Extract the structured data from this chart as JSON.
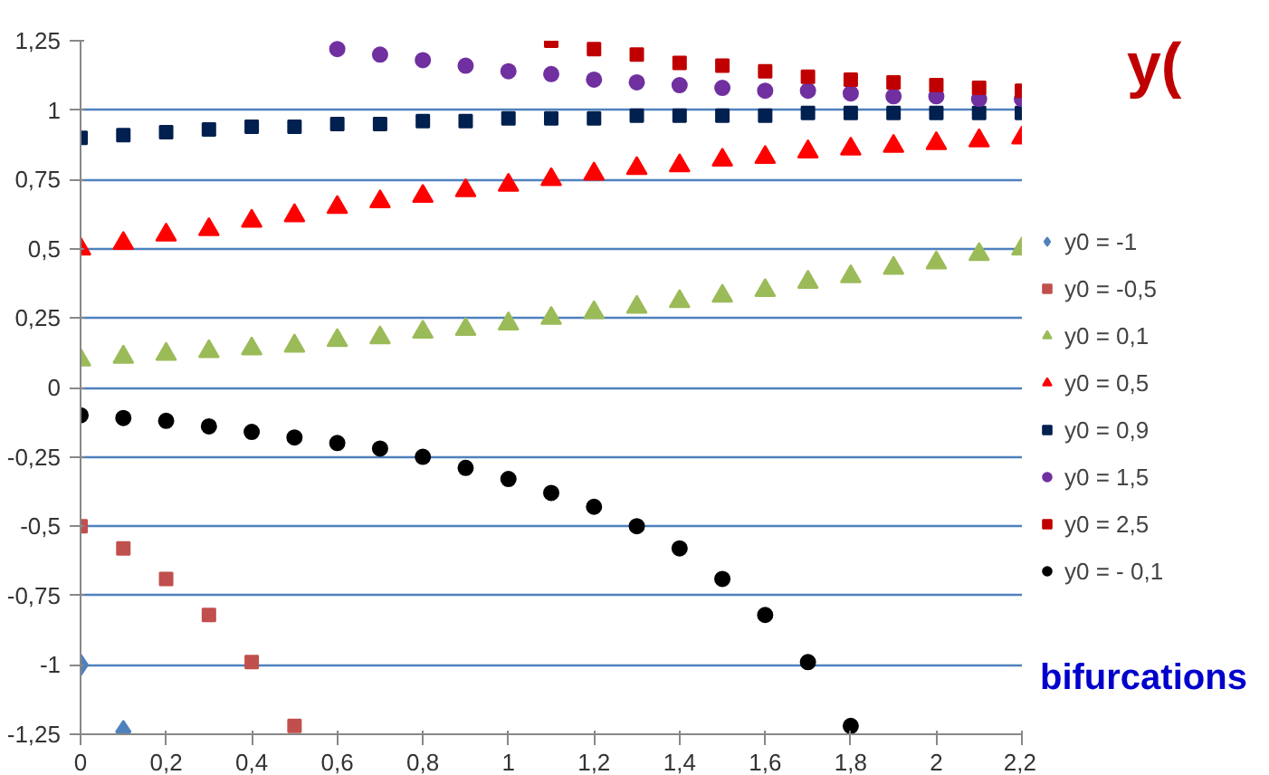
{
  "chart_data": {
    "type": "scatter",
    "x": [
      0,
      0.1,
      0.2,
      0.3,
      0.4,
      0.5,
      0.6,
      0.7,
      0.8,
      0.9,
      1,
      1.1,
      1.2,
      1.3,
      1.4,
      1.5,
      1.6,
      1.7,
      1.8,
      1.9,
      2,
      2.1,
      2.2
    ],
    "series": [
      {
        "name": "y0 = -1",
        "color": "#4f81bd",
        "marker": "diamond",
        "values": [
          -1,
          -1.24,
          null,
          null,
          null,
          null,
          null,
          null,
          null,
          null,
          null,
          null,
          null,
          null,
          null,
          null,
          null,
          null,
          null,
          null,
          null,
          null,
          null
        ]
      },
      {
        "name": "y0 = -0,5",
        "color": "#c0504d",
        "marker": "square",
        "values": [
          -0.5,
          -0.58,
          -0.69,
          -0.82,
          -0.99,
          -1.22,
          null,
          null,
          null,
          null,
          null,
          null,
          null,
          null,
          null,
          null,
          null,
          null,
          null,
          null,
          null,
          null,
          null
        ]
      },
      {
        "name": "y0 = 0,1",
        "color": "#9bbb59",
        "marker": "triangle",
        "values": [
          0.1,
          0.11,
          0.12,
          0.13,
          0.14,
          0.15,
          0.17,
          0.18,
          0.2,
          0.21,
          0.23,
          0.25,
          0.27,
          0.29,
          0.31,
          0.33,
          0.35,
          0.38,
          0.4,
          0.43,
          0.45,
          0.48,
          0.5
        ]
      },
      {
        "name": "y0 = 0,5",
        "color": "#ff0000",
        "marker": "triangle",
        "values": [
          0.5,
          0.52,
          0.55,
          0.57,
          0.6,
          0.62,
          0.65,
          0.67,
          0.69,
          0.71,
          0.73,
          0.75,
          0.77,
          0.79,
          0.8,
          0.82,
          0.83,
          0.85,
          0.86,
          0.87,
          0.88,
          0.89,
          0.9
        ]
      },
      {
        "name": "y0 = 0,9",
        "color": "#002050",
        "marker": "square",
        "values": [
          0.9,
          0.91,
          0.92,
          0.93,
          0.94,
          0.94,
          0.95,
          0.95,
          0.96,
          0.96,
          0.97,
          0.97,
          0.97,
          0.98,
          0.98,
          0.98,
          0.98,
          0.99,
          0.99,
          0.99,
          0.99,
          0.99,
          0.99
        ]
      },
      {
        "name": "y0 = 1,5",
        "color": "#7030a0",
        "marker": "circle",
        "values": [
          null,
          null,
          null,
          null,
          null,
          null,
          1.22,
          1.2,
          1.18,
          1.16,
          1.14,
          1.13,
          1.11,
          1.1,
          1.09,
          1.08,
          1.07,
          1.07,
          1.06,
          1.05,
          1.05,
          1.04,
          1.04
        ]
      },
      {
        "name": "y0 = 2,5",
        "color": "#c00000",
        "marker": "square",
        "values": [
          null,
          null,
          null,
          null,
          null,
          null,
          null,
          null,
          null,
          null,
          null,
          1.25,
          1.22,
          1.2,
          1.17,
          1.16,
          1.14,
          1.12,
          1.11,
          1.1,
          1.09,
          1.08,
          1.07
        ]
      },
      {
        "name": "y0 = - 0,1",
        "color": "#000000",
        "marker": "circle",
        "values": [
          -0.1,
          -0.11,
          -0.12,
          -0.14,
          -0.16,
          -0.18,
          -0.2,
          -0.22,
          -0.25,
          -0.29,
          -0.33,
          -0.38,
          -0.43,
          -0.5,
          -0.58,
          -0.69,
          -0.82,
          -0.99,
          -1.22,
          null,
          null,
          null,
          null
        ]
      }
    ],
    "xlim": [
      0,
      2.2
    ],
    "xticks": [
      0,
      {
        "value": 0.2,
        "label": "0,2"
      },
      {
        "value": 0.4,
        "label": "0,4"
      },
      {
        "value": 0.6,
        "label": "0,6"
      },
      {
        "value": 0.8,
        "label": "0,8"
      },
      1,
      {
        "value": 1.2,
        "label": "1,2"
      },
      {
        "value": 1.4,
        "label": "1,4"
      },
      {
        "value": 1.6,
        "label": "1,6"
      },
      {
        "value": 1.8,
        "label": "1,8"
      },
      2,
      {
        "value": 2.2,
        "label": "2,2"
      }
    ],
    "ylim": [
      -1.25,
      1.25
    ],
    "yticks": [
      {
        "value": -1.25,
        "label": "-1,25"
      },
      -1,
      {
        "value": -0.75,
        "label": "-0,75"
      },
      {
        "value": -0.5,
        "label": "-0,5"
      },
      {
        "value": -0.25,
        "label": "-0,25"
      },
      0,
      {
        "value": 0.25,
        "label": "0,25"
      },
      {
        "value": 0.5,
        "label": "0,5"
      },
      {
        "value": 0.75,
        "label": "0,75"
      },
      1,
      {
        "value": 1.25,
        "label": "1,25"
      }
    ],
    "grid": "y",
    "legend": "right",
    "annotations": [
      "y(",
      "bifurcations"
    ]
  }
}
